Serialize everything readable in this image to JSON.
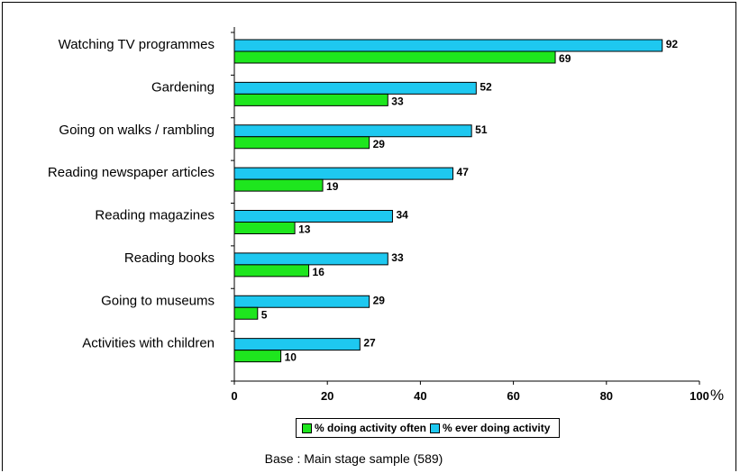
{
  "chart_data": {
    "type": "bar",
    "orientation": "horizontal",
    "categories": [
      "Watching TV programmes",
      "Gardening",
      "Going on walks / rambling",
      "Reading newspaper articles",
      "Reading magazines",
      "Reading books",
      "Going to museums",
      "Activities with children"
    ],
    "series": [
      {
        "name": "% ever doing activity",
        "color": "#1ec8f0",
        "values": [
          92,
          52,
          51,
          47,
          34,
          33,
          29,
          27
        ]
      },
      {
        "name": "% doing activity often",
        "color": "#1ee61e",
        "values": [
          69,
          33,
          29,
          19,
          13,
          16,
          5,
          10
        ]
      }
    ],
    "x_ticks": [
      "0",
      "20",
      "40",
      "60",
      "80",
      "100"
    ],
    "xlim": [
      0,
      100
    ],
    "x_unit": "%",
    "legend": {
      "placement": "bottom",
      "items": [
        "% doing activity often",
        "% ever doing activity"
      ]
    },
    "grid": false
  },
  "footnote": "Base : Main stage sample (589)"
}
